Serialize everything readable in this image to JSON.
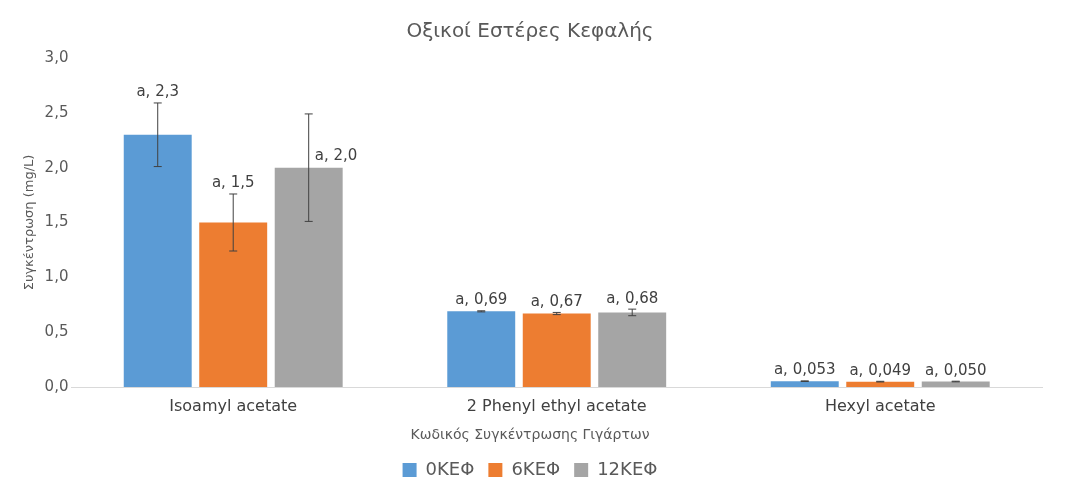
{
  "chart_data": {
    "type": "bar",
    "title": "Οξικοί Εστέρες Κεφαλής",
    "ylabel": "Συγκέντρωση (mg/L)",
    "legend_title": "Κωδικός Συγκέντρωσης Γιγάρτων",
    "legend": "bottom",
    "grid": false,
    "categories": [
      "Isoamyl acetate",
      "2 Phenyl ethyl acetate",
      "Hexyl acetate"
    ],
    "ylim": [
      0,
      3
    ],
    "yticks": [
      {
        "value": 0,
        "label": "0,0"
      },
      {
        "value": 0.5,
        "label": "0,5"
      },
      {
        "value": 1,
        "label": "1,0"
      },
      {
        "value": 1.5,
        "label": "1,5"
      },
      {
        "value": 2,
        "label": "2,0"
      },
      {
        "value": 2.5,
        "label": "2,5"
      },
      {
        "value": 3,
        "label": "3,0"
      }
    ],
    "series": [
      {
        "name": "0ΚΕΦ",
        "color": "#5b9bd5",
        "values": [
          2.3,
          0.69,
          0.053
        ],
        "errors": [
          0.29,
          0.005,
          0.003
        ],
        "value_labels": [
          "a, 2,3",
          "a, 0,69",
          "a, 0,053"
        ]
      },
      {
        "name": "6ΚΕΦ",
        "color": "#ed7d31",
        "values": [
          1.5,
          0.67,
          0.049
        ],
        "errors": [
          0.26,
          0.01,
          0.003
        ],
        "value_labels": [
          "a, 1,5",
          "a, 0,67",
          "a, 0,049"
        ]
      },
      {
        "name": "12ΚΕΦ",
        "color": "#a5a5a5",
        "values": [
          2.0,
          0.68,
          0.05
        ],
        "errors": [
          0.49,
          0.03,
          0.003
        ],
        "value_labels": [
          "a, 2,0",
          "a, 0,68",
          "a, 0,050"
        ]
      }
    ]
  }
}
